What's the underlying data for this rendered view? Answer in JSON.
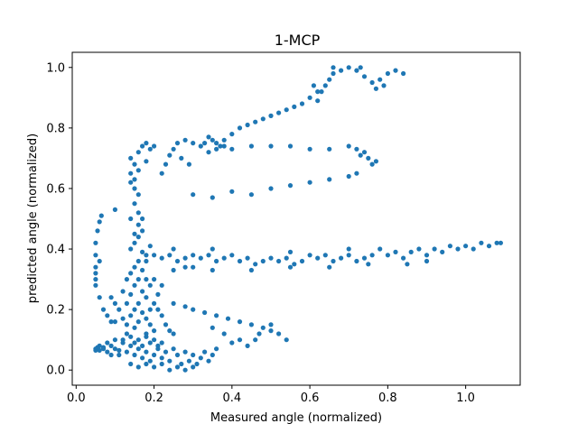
{
  "chart_data": {
    "type": "scatter",
    "title": "1-MCP",
    "xlabel": "Measured angle (normalized)",
    "ylabel": "predicted angle (normalized)",
    "xlim": [
      -0.01,
      1.14
    ],
    "ylim": [
      -0.05,
      1.05
    ],
    "xticks": [
      0.0,
      0.2,
      0.4,
      0.6,
      0.8,
      1.0
    ],
    "yticks": [
      0.0,
      0.2,
      0.4,
      0.6,
      0.8,
      1.0
    ],
    "xtick_labels": [
      "0.0",
      "0.2",
      "0.4",
      "0.6",
      "0.8",
      "1.0"
    ],
    "ytick_labels": [
      "0.0",
      "0.2",
      "0.4",
      "0.6",
      "0.8",
      "1.0"
    ],
    "grid": false,
    "marker_color": "#1f77b4",
    "series": [
      {
        "name": "",
        "points": [
          [
            0.05,
            0.07
          ],
          [
            0.06,
            0.065
          ],
          [
            0.07,
            0.075
          ],
          [
            0.08,
            0.06
          ],
          [
            0.09,
            0.08
          ],
          [
            0.1,
            0.07
          ],
          [
            0.11,
            0.065
          ],
          [
            0.12,
            0.09
          ],
          [
            0.13,
            0.06
          ],
          [
            0.14,
            0.08
          ],
          [
            0.15,
            0.05
          ],
          [
            0.16,
            0.07
          ],
          [
            0.17,
            0.04
          ],
          [
            0.18,
            0.06
          ],
          [
            0.19,
            0.03
          ],
          [
            0.2,
            0.05
          ],
          [
            0.21,
            0.08
          ],
          [
            0.22,
            0.04
          ],
          [
            0.23,
            0.06
          ],
          [
            0.24,
            0.03
          ],
          [
            0.25,
            0.07
          ],
          [
            0.26,
            0.05
          ],
          [
            0.27,
            0.02
          ],
          [
            0.28,
            0.06
          ],
          [
            0.29,
            0.03
          ],
          [
            0.3,
            0.05
          ],
          [
            0.31,
            0.02
          ],
          [
            0.32,
            0.04
          ],
          [
            0.33,
            0.06
          ],
          [
            0.34,
            0.03
          ],
          [
            0.35,
            0.05
          ],
          [
            0.36,
            0.07
          ],
          [
            0.12,
            0.1
          ],
          [
            0.13,
            0.12
          ],
          [
            0.14,
            0.11
          ],
          [
            0.15,
            0.09
          ],
          [
            0.16,
            0.1
          ],
          [
            0.17,
            0.08
          ],
          [
            0.18,
            0.11
          ],
          [
            0.19,
            0.09
          ],
          [
            0.2,
            0.1
          ],
          [
            0.21,
            0.07
          ],
          [
            0.22,
            0.09
          ],
          [
            0.14,
            0.02
          ],
          [
            0.16,
            0.01
          ],
          [
            0.18,
            0.02
          ],
          [
            0.2,
            0.01
          ],
          [
            0.22,
            0.02
          ],
          [
            0.24,
            0.0
          ],
          [
            0.26,
            0.01
          ],
          [
            0.28,
            0.0
          ],
          [
            0.3,
            0.01
          ],
          [
            0.08,
            0.09
          ],
          [
            0.09,
            0.05
          ],
          [
            0.1,
            0.1
          ],
          [
            0.11,
            0.05
          ],
          [
            0.07,
            0.07
          ],
          [
            0.06,
            0.08
          ],
          [
            0.05,
            0.065
          ],
          [
            0.055,
            0.075
          ],
          [
            0.13,
            0.15
          ],
          [
            0.14,
            0.18
          ],
          [
            0.15,
            0.2
          ],
          [
            0.13,
            0.22
          ],
          [
            0.14,
            0.25
          ],
          [
            0.15,
            0.28
          ],
          [
            0.16,
            0.3
          ],
          [
            0.17,
            0.26
          ],
          [
            0.18,
            0.24
          ],
          [
            0.16,
            0.22
          ],
          [
            0.17,
            0.19
          ],
          [
            0.18,
            0.17
          ],
          [
            0.19,
            0.15
          ],
          [
            0.2,
            0.13
          ],
          [
            0.15,
            0.14
          ],
          [
            0.16,
            0.16
          ],
          [
            0.19,
            0.2
          ],
          [
            0.2,
            0.22
          ],
          [
            0.21,
            0.25
          ],
          [
            0.19,
            0.28
          ],
          [
            0.18,
            0.3
          ],
          [
            0.2,
            0.3
          ],
          [
            0.21,
            0.2
          ],
          [
            0.22,
            0.18
          ],
          [
            0.14,
            0.32
          ],
          [
            0.15,
            0.34
          ],
          [
            0.16,
            0.36
          ],
          [
            0.13,
            0.3
          ],
          [
            0.17,
            0.33
          ],
          [
            0.18,
            0.12
          ],
          [
            0.12,
            0.17
          ],
          [
            0.11,
            0.2
          ],
          [
            0.1,
            0.22
          ],
          [
            0.09,
            0.24
          ],
          [
            0.1,
            0.16
          ],
          [
            0.23,
            0.15
          ],
          [
            0.24,
            0.13
          ],
          [
            0.25,
            0.12
          ],
          [
            0.22,
            0.28
          ],
          [
            0.12,
            0.26
          ],
          [
            0.14,
            0.4
          ],
          [
            0.15,
            0.42
          ],
          [
            0.16,
            0.44
          ],
          [
            0.17,
            0.46
          ],
          [
            0.16,
            0.48
          ],
          [
            0.17,
            0.5
          ],
          [
            0.16,
            0.52
          ],
          [
            0.15,
            0.55
          ],
          [
            0.16,
            0.58
          ],
          [
            0.15,
            0.6
          ],
          [
            0.14,
            0.62
          ],
          [
            0.14,
            0.65
          ],
          [
            0.15,
            0.68
          ],
          [
            0.14,
            0.7
          ],
          [
            0.16,
            0.72
          ],
          [
            0.17,
            0.74
          ],
          [
            0.18,
            0.75
          ],
          [
            0.19,
            0.73
          ],
          [
            0.2,
            0.74
          ],
          [
            0.18,
            0.38
          ],
          [
            0.17,
            0.39
          ],
          [
            0.19,
            0.41
          ],
          [
            0.18,
            0.36
          ],
          [
            0.15,
            0.45
          ],
          [
            0.14,
            0.5
          ],
          [
            0.15,
            0.63
          ],
          [
            0.16,
            0.66
          ],
          [
            0.18,
            0.69
          ],
          [
            0.05,
            0.3
          ],
          [
            0.05,
            0.34
          ],
          [
            0.05,
            0.38
          ],
          [
            0.05,
            0.42
          ],
          [
            0.055,
            0.46
          ],
          [
            0.06,
            0.49
          ],
          [
            0.065,
            0.51
          ],
          [
            0.05,
            0.28
          ],
          [
            0.05,
            0.32
          ],
          [
            0.06,
            0.36
          ],
          [
            0.07,
            0.2
          ],
          [
            0.08,
            0.18
          ],
          [
            0.09,
            0.16
          ],
          [
            0.06,
            0.24
          ],
          [
            0.1,
            0.53
          ],
          [
            0.2,
            0.38
          ],
          [
            0.22,
            0.37
          ],
          [
            0.24,
            0.38
          ],
          [
            0.26,
            0.36
          ],
          [
            0.28,
            0.37
          ],
          [
            0.3,
            0.38
          ],
          [
            0.32,
            0.37
          ],
          [
            0.34,
            0.38
          ],
          [
            0.36,
            0.36
          ],
          [
            0.38,
            0.37
          ],
          [
            0.4,
            0.38
          ],
          [
            0.42,
            0.36
          ],
          [
            0.44,
            0.37
          ],
          [
            0.46,
            0.35
          ],
          [
            0.48,
            0.36
          ],
          [
            0.5,
            0.37
          ],
          [
            0.52,
            0.36
          ],
          [
            0.54,
            0.37
          ],
          [
            0.56,
            0.35
          ],
          [
            0.58,
            0.36
          ],
          [
            0.6,
            0.38
          ],
          [
            0.62,
            0.37
          ],
          [
            0.64,
            0.38
          ],
          [
            0.66,
            0.36
          ],
          [
            0.68,
            0.37
          ],
          [
            0.7,
            0.38
          ],
          [
            0.72,
            0.36
          ],
          [
            0.74,
            0.37
          ],
          [
            0.76,
            0.38
          ],
          [
            0.78,
            0.4
          ],
          [
            0.8,
            0.38
          ],
          [
            0.82,
            0.39
          ],
          [
            0.84,
            0.37
          ],
          [
            0.86,
            0.39
          ],
          [
            0.88,
            0.4
          ],
          [
            0.9,
            0.38
          ],
          [
            0.92,
            0.4
          ],
          [
            0.94,
            0.39
          ],
          [
            0.96,
            0.41
          ],
          [
            0.98,
            0.4
          ],
          [
            1.0,
            0.41
          ],
          [
            1.02,
            0.4
          ],
          [
            1.04,
            0.42
          ],
          [
            1.06,
            0.41
          ],
          [
            1.08,
            0.42
          ],
          [
            1.09,
            0.42
          ],
          [
            0.25,
            0.33
          ],
          [
            0.3,
            0.34
          ],
          [
            0.35,
            0.33
          ],
          [
            0.45,
            0.33
          ],
          [
            0.55,
            0.34
          ],
          [
            0.65,
            0.34
          ],
          [
            0.75,
            0.35
          ],
          [
            0.85,
            0.35
          ],
          [
            0.25,
            0.4
          ],
          [
            0.35,
            0.4
          ],
          [
            0.55,
            0.39
          ],
          [
            0.7,
            0.4
          ],
          [
            0.9,
            0.36
          ],
          [
            0.28,
            0.34
          ],
          [
            0.33,
            0.75
          ],
          [
            0.34,
            0.77
          ],
          [
            0.35,
            0.76
          ],
          [
            0.36,
            0.75
          ],
          [
            0.37,
            0.74
          ],
          [
            0.38,
            0.76
          ],
          [
            0.4,
            0.78
          ],
          [
            0.42,
            0.8
          ],
          [
            0.44,
            0.81
          ],
          [
            0.46,
            0.82
          ],
          [
            0.48,
            0.83
          ],
          [
            0.5,
            0.84
          ],
          [
            0.52,
            0.85
          ],
          [
            0.54,
            0.86
          ],
          [
            0.56,
            0.87
          ],
          [
            0.58,
            0.88
          ],
          [
            0.6,
            0.9
          ],
          [
            0.62,
            0.92
          ],
          [
            0.64,
            0.94
          ],
          [
            0.65,
            0.96
          ],
          [
            0.66,
            0.98
          ],
          [
            0.68,
            0.99
          ],
          [
            0.7,
            1.0
          ],
          [
            0.72,
            0.99
          ],
          [
            0.74,
            0.97
          ],
          [
            0.76,
            0.95
          ],
          [
            0.78,
            0.96
          ],
          [
            0.8,
            0.98
          ],
          [
            0.82,
            0.99
          ],
          [
            0.84,
            0.98
          ],
          [
            0.63,
            0.92
          ],
          [
            0.62,
            0.89
          ],
          [
            0.61,
            0.94
          ],
          [
            0.66,
            1.0
          ],
          [
            0.73,
            1.0
          ],
          [
            0.77,
            0.93
          ],
          [
            0.79,
            0.94
          ],
          [
            0.22,
            0.65
          ],
          [
            0.23,
            0.68
          ],
          [
            0.24,
            0.71
          ],
          [
            0.25,
            0.73
          ],
          [
            0.26,
            0.75
          ],
          [
            0.28,
            0.76
          ],
          [
            0.3,
            0.75
          ],
          [
            0.32,
            0.74
          ],
          [
            0.34,
            0.72
          ],
          [
            0.36,
            0.73
          ],
          [
            0.38,
            0.74
          ],
          [
            0.4,
            0.73
          ],
          [
            0.45,
            0.74
          ],
          [
            0.5,
            0.74
          ],
          [
            0.55,
            0.74
          ],
          [
            0.6,
            0.73
          ],
          [
            0.65,
            0.73
          ],
          [
            0.7,
            0.74
          ],
          [
            0.72,
            0.73
          ],
          [
            0.74,
            0.72
          ],
          [
            0.75,
            0.7
          ],
          [
            0.76,
            0.68
          ],
          [
            0.77,
            0.69
          ],
          [
            0.73,
            0.71
          ],
          [
            0.27,
            0.7
          ],
          [
            0.29,
            0.68
          ],
          [
            0.3,
            0.58
          ],
          [
            0.4,
            0.59
          ],
          [
            0.5,
            0.6
          ],
          [
            0.6,
            0.62
          ],
          [
            0.65,
            0.63
          ],
          [
            0.7,
            0.64
          ],
          [
            0.72,
            0.65
          ],
          [
            0.35,
            0.57
          ],
          [
            0.45,
            0.58
          ],
          [
            0.55,
            0.61
          ],
          [
            0.3,
            0.2
          ],
          [
            0.33,
            0.19
          ],
          [
            0.36,
            0.18
          ],
          [
            0.39,
            0.17
          ],
          [
            0.42,
            0.16
          ],
          [
            0.45,
            0.15
          ],
          [
            0.48,
            0.14
          ],
          [
            0.5,
            0.13
          ],
          [
            0.52,
            0.12
          ],
          [
            0.54,
            0.1
          ],
          [
            0.4,
            0.09
          ],
          [
            0.44,
            0.08
          ],
          [
            0.46,
            0.1
          ],
          [
            0.25,
            0.22
          ],
          [
            0.28,
            0.21
          ],
          [
            0.35,
            0.14
          ],
          [
            0.38,
            0.12
          ],
          [
            0.42,
            0.1
          ],
          [
            0.47,
            0.12
          ],
          [
            0.5,
            0.15
          ]
        ]
      }
    ]
  }
}
